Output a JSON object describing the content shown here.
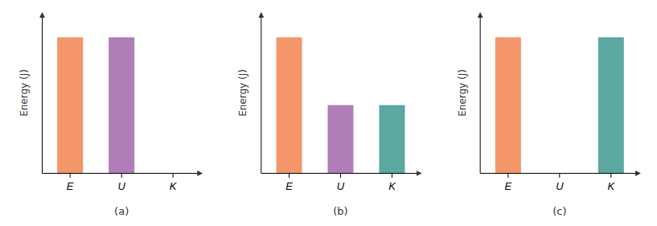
{
  "chart_data": [
    {
      "type": "bar",
      "title": "(a)",
      "y_label": "Energy (J)",
      "categories": [
        "E",
        "U",
        "K"
      ],
      "values": [
        1.0,
        1.0,
        0.0
      ],
      "colors": [
        "#F4956A",
        "#B07DB8",
        "#5BA8A0"
      ],
      "ylim": [
        0,
        1.18
      ],
      "grid": false,
      "tick_labels": "x"
    },
    {
      "type": "bar",
      "title": "(b)",
      "y_label": "Energy (J)",
      "categories": [
        "E",
        "U",
        "K"
      ],
      "values": [
        1.0,
        0.5,
        0.5
      ],
      "colors": [
        "#F4956A",
        "#B07DB8",
        "#5BA8A0"
      ],
      "ylim": [
        0,
        1.18
      ],
      "grid": false,
      "tick_labels": "x"
    },
    {
      "type": "bar",
      "title": "(c)",
      "y_label": "Energy (J)",
      "categories": [
        "E",
        "U",
        "K"
      ],
      "values": [
        1.0,
        0.0,
        1.0
      ],
      "colors": [
        "#F4956A",
        "#B07DB8",
        "#5BA8A0"
      ],
      "ylim": [
        0,
        1.18
      ],
      "grid": false,
      "tick_labels": "x"
    }
  ]
}
